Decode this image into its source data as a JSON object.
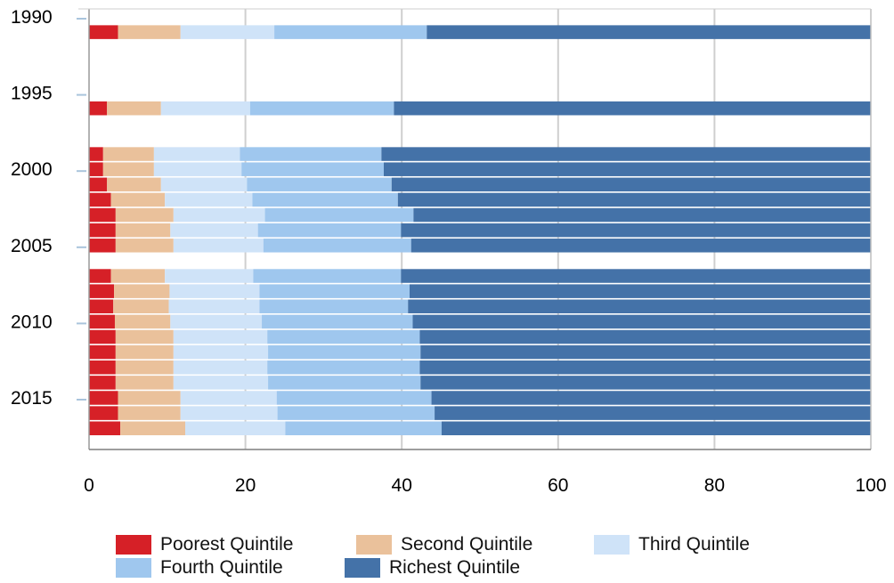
{
  "chart_data": {
    "type": "bar",
    "orientation": "horizontal",
    "stacked": true,
    "title": "",
    "xlabel": "",
    "ylabel": "",
    "xlim": [
      0,
      100
    ],
    "x_ticks": [
      "0",
      "20",
      "40",
      "60",
      "80",
      "100"
    ],
    "year_ticks": [
      "1990",
      "1995",
      "2000",
      "2005",
      "2010",
      "2015"
    ],
    "grid": "vertical",
    "legend_position": "bottom",
    "years": [
      1991,
      1996,
      1999,
      2000,
      2001,
      2002,
      2003,
      2004,
      2005,
      2007,
      2008,
      2009,
      2010,
      2011,
      2012,
      2013,
      2014,
      2015,
      2016,
      2017
    ],
    "series": [
      {
        "name": "Poorest Quintile",
        "color": "#d62027",
        "values": [
          3.7,
          2.3,
          1.8,
          1.8,
          2.3,
          2.8,
          3.4,
          3.4,
          3.4,
          2.8,
          3.2,
          3.1,
          3.3,
          3.4,
          3.4,
          3.4,
          3.4,
          3.7,
          3.7,
          4.0
        ]
      },
      {
        "name": "Second Quintile",
        "color": "#eac19b",
        "values": [
          8.0,
          6.9,
          6.5,
          6.5,
          6.9,
          6.9,
          7.4,
          7.0,
          7.4,
          6.9,
          7.1,
          7.1,
          7.1,
          7.4,
          7.4,
          7.4,
          7.4,
          8.0,
          8.0,
          8.3
        ]
      },
      {
        "name": "Third Quintile",
        "color": "#cfe3f8",
        "values": [
          12.0,
          11.4,
          11.0,
          11.2,
          11.0,
          11.2,
          11.7,
          11.2,
          11.5,
          11.3,
          11.5,
          11.6,
          11.7,
          12.0,
          12.1,
          12.0,
          12.1,
          12.3,
          12.4,
          12.8
        ]
      },
      {
        "name": "Fourth Quintile",
        "color": "#9fc7ee",
        "values": [
          19.5,
          18.4,
          18.1,
          18.2,
          18.5,
          18.6,
          19.0,
          18.3,
          18.9,
          18.9,
          19.2,
          19.0,
          19.3,
          19.5,
          19.5,
          19.5,
          19.5,
          19.8,
          20.1,
          20.0
        ]
      },
      {
        "name": "Richest Quintile",
        "color": "#4472a8",
        "values": [
          56.8,
          61.0,
          62.6,
          62.3,
          61.3,
          60.5,
          58.5,
          60.1,
          58.8,
          60.1,
          59.0,
          59.2,
          58.6,
          57.7,
          57.6,
          57.7,
          57.6,
          56.2,
          55.8,
          54.9
        ]
      }
    ]
  }
}
